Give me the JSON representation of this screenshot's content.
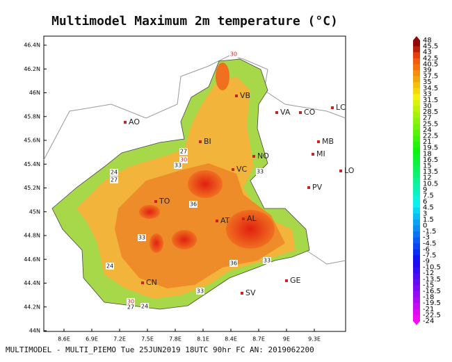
{
  "title": "Multimodel Maximum 2m temperature (°C)",
  "footer": "MULTIMODEL - MULTI_PIEMO Tue 25JUN2019 18UTC 90hr FC AN: 2019062200",
  "map": {
    "lat_labels": [
      "46.4N",
      "46.2N",
      "46N",
      "45.8N",
      "45.6N",
      "45.4N",
      "45.2N",
      "45N",
      "44.8N",
      "44.6N",
      "44.4N",
      "44.2N",
      "44N"
    ],
    "lon_labels": [
      "8.6E",
      "6.9E",
      "7.2E",
      "7.5E",
      "7.8E",
      "8.1E",
      "8.4E",
      "8.7E",
      "9E",
      "9.3E"
    ],
    "cities": [
      "AO",
      "BI",
      "VB",
      "VA",
      "CO",
      "LC",
      "NO",
      "MB",
      "MI",
      "VC",
      "LO",
      "TO",
      "PV",
      "AT",
      "AL",
      "CN",
      "GE",
      "SV"
    ],
    "contour_labels": [
      "30",
      "27",
      "30",
      "33",
      "24",
      "27",
      "36",
      "33",
      "24",
      "36",
      "33",
      "33",
      "30",
      "27",
      "24",
      "33"
    ]
  },
  "colorbar": {
    "levels": [
      48,
      45.5,
      43,
      42.5,
      40.5,
      39,
      37.5,
      35,
      34.5,
      33,
      31.5,
      30,
      28.5,
      27,
      25.5,
      24,
      22.5,
      21,
      19.5,
      18,
      16.5,
      15,
      13.5,
      12,
      10.5,
      9,
      7.5,
      6,
      4.5,
      3,
      1.5,
      0,
      -1.5,
      -3,
      -4.5,
      -6,
      -7.5,
      -9,
      -10.5,
      -12,
      -13.5,
      -15,
      -16.5,
      -18,
      -19.5,
      -21,
      -22.5,
      -24
    ]
  }
}
